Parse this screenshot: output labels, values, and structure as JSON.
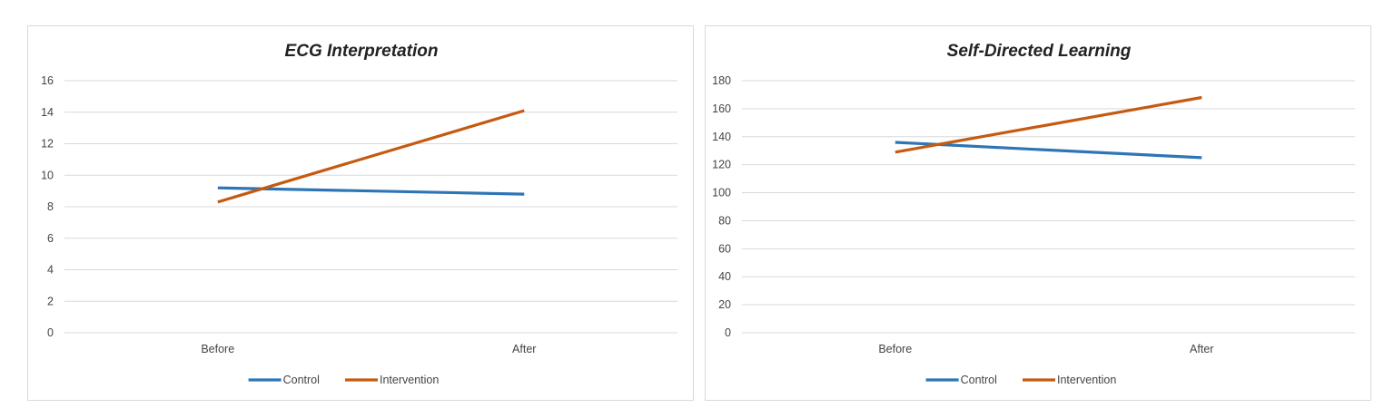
{
  "colors": {
    "control": "#2e75b6",
    "intervention": "#c55a11"
  },
  "chart_data": [
    {
      "type": "line",
      "title": "ECG Interpretation",
      "categories": [
        "Before",
        "After"
      ],
      "series": [
        {
          "name": "Control",
          "values": [
            9.2,
            8.8
          ]
        },
        {
          "name": "Intervention",
          "values": [
            8.3,
            14.1
          ]
        }
      ],
      "ylim": [
        0,
        16
      ],
      "yticks": [
        "0",
        "2",
        "4",
        "6",
        "8",
        "10",
        "12",
        "14",
        "16"
      ],
      "grid": true,
      "legend": "bottom"
    },
    {
      "type": "line",
      "title": "Self-Directed Learning",
      "categories": [
        "Before",
        "After"
      ],
      "series": [
        {
          "name": "Control",
          "values": [
            136,
            125
          ]
        },
        {
          "name": "Intervention",
          "values": [
            129,
            168
          ]
        }
      ],
      "ylim": [
        0,
        180
      ],
      "yticks": [
        "0",
        "20",
        "40",
        "60",
        "80",
        "100",
        "120",
        "140",
        "160",
        "180"
      ],
      "grid": true,
      "legend": "bottom"
    }
  ]
}
